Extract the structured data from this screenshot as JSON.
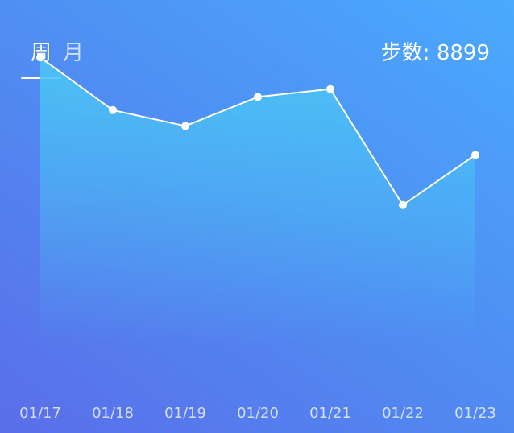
{
  "tabs": [
    {
      "label": "周",
      "active": true
    },
    {
      "label": "月",
      "active": false
    }
  ],
  "steps": {
    "label": "步数:",
    "value": "8899"
  },
  "colors": {
    "line": "#ffffff",
    "area_top": "#4cc3f5",
    "background_top": "#4aaafd",
    "background_bottom": "#5a6ee9"
  },
  "chart_data": {
    "type": "area",
    "categories": [
      "01/17",
      "01/18",
      "01/19",
      "01/20",
      "01/21",
      "01/22",
      "01/23"
    ],
    "series": [
      {
        "values": [
          10800,
          8800,
          8200,
          9300,
          9600,
          5200,
          7100
        ]
      }
    ],
    "ylim": [
      0,
      12000
    ],
    "grid": false
  }
}
